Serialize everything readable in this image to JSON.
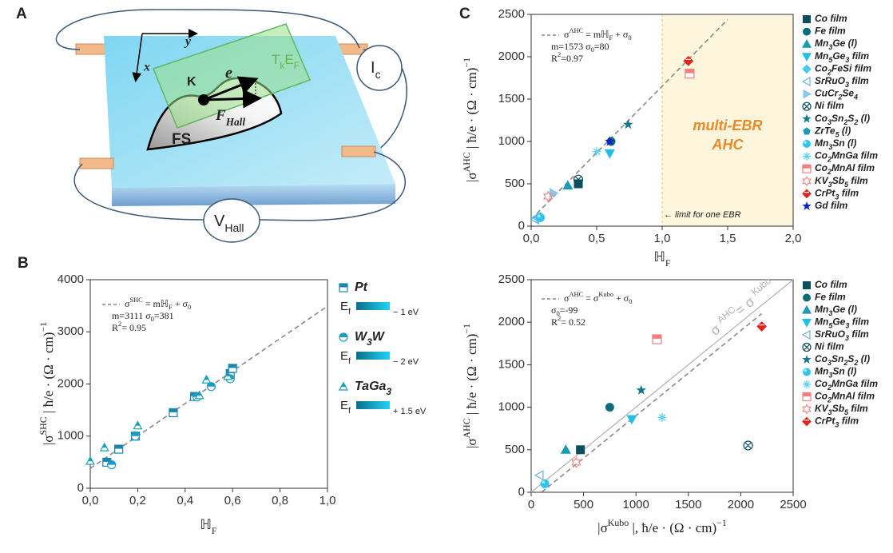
{
  "panel_a": {
    "label": "A",
    "axis_x": "x",
    "axis_y": "y",
    "e": "e",
    "k": "K",
    "tkef": [
      {
        "text": "T"
      },
      {
        "text": "k",
        "shift": "sub"
      },
      {
        "text": "E"
      },
      {
        "text": "F",
        "shift": "sub"
      }
    ],
    "f_hall": [
      {
        "text": "F"
      },
      {
        "text": "Hall",
        "shift": "sub"
      }
    ],
    "fs": "FS",
    "ic": [
      {
        "text": "I"
      },
      {
        "text": "c",
        "shift": "sub"
      }
    ],
    "v_hall": [
      {
        "text": "V"
      },
      {
        "text": "Hall",
        "shift": "sub"
      }
    ]
  },
  "chart_data": [
    {
      "type": "scatter",
      "label": "B",
      "xlabel": [
        {
          "text": "ℍ"
        },
        {
          "text": "F",
          "shift": "sub"
        }
      ],
      "ylabel": [
        {
          "text": "|σ"
        },
        {
          "text": "SHC",
          "shift": "super"
        },
        {
          "text": " | ħ/e · (Ω · cm)"
        },
        {
          "text": "−1",
          "shift": "super"
        }
      ],
      "xlim": [
        0,
        1.0
      ],
      "xticks": [
        {
          "value": 0,
          "label": "0,0"
        },
        {
          "value": 0.2,
          "label": "0,2"
        },
        {
          "value": 0.4,
          "label": "0,4"
        },
        {
          "value": 0.6,
          "label": "0,6"
        },
        {
          "value": 0.8,
          "label": "0,8"
        },
        {
          "value": 1.0,
          "label": "1,0"
        }
      ],
      "ylim": [
        0,
        4000
      ],
      "yticks": [
        0,
        1000,
        2000,
        3000,
        4000
      ],
      "fit": {
        "m": 3111,
        "sigma0": 381,
        "xrange": [
          0,
          1.0
        ],
        "color": "#8a8a8a"
      },
      "annotation": [
        [
          {
            "text": "σ"
          },
          {
            "text": "SHC",
            "shift": "super"
          },
          {
            "text": " = mℍ"
          },
          {
            "text": "F",
            "shift": "sub"
          },
          {
            "text": " + σ"
          },
          {
            "text": "0",
            "shift": "sub"
          }
        ],
        [
          {
            "text": "m=3111 σ"
          },
          {
            "text": "0",
            "shift": "sub"
          },
          {
            "text": "=381"
          }
        ],
        [
          {
            "text": "R"
          },
          {
            "text": "2",
            "shift": "super"
          },
          {
            "text": "= 0.95"
          }
        ]
      ],
      "ef_label": [
        {
          "text": "E"
        },
        {
          "text": "f",
          "shift": "sub"
        }
      ],
      "ef_gradient": [
        "#0a6f8c",
        "#22d2f8"
      ],
      "series": [
        {
          "name": "Pt",
          "marker": "half-square",
          "color": "#1a86b0",
          "ef_range": "− 1 eV",
          "x": [
            0.07,
            0.12,
            0.19,
            0.35,
            0.44,
            0.59,
            0.6
          ],
          "values": [
            500,
            750,
            1000,
            1450,
            1760,
            2200,
            2300
          ]
        },
        {
          "name": "W3W",
          "marker": "half-circle",
          "color": "#1a9cc4",
          "ef_range": "− 2 eV",
          "x": [
            0.09,
            0.19,
            0.45,
            0.51,
            0.59
          ],
          "values": [
            450,
            1000,
            1750,
            1950,
            2100
          ]
        },
        {
          "name": "TaGa3",
          "marker": "half-triangle",
          "color": "#16a0b8",
          "ef_range": "+ 1.5 eV",
          "x": [
            0.0,
            0.06,
            0.2,
            0.46,
            0.49,
            0.58
          ],
          "values": [
            520,
            780,
            1200,
            1780,
            2080,
            2150
          ]
        }
      ]
    },
    {
      "type": "scatter",
      "label": "C",
      "xlabel": [
        {
          "text": "ℍ"
        },
        {
          "text": "F",
          "shift": "sub"
        }
      ],
      "ylabel": [
        {
          "text": "|σ"
        },
        {
          "text": "AHC",
          "shift": "super"
        },
        {
          "text": " | ħ/e · (Ω · cm)"
        },
        {
          "text": "−1",
          "shift": "super"
        }
      ],
      "xlim": [
        0,
        2.0
      ],
      "xticks": [
        {
          "value": 0,
          "label": "0,0"
        },
        {
          "value": 0.5,
          "label": "0,5"
        },
        {
          "value": 1.0,
          "label": "1,0"
        },
        {
          "value": 1.5,
          "label": "1,5"
        },
        {
          "value": 2.0,
          "label": "2,0"
        }
      ],
      "ylim": [
        0,
        2500
      ],
      "yticks": [
        0,
        500,
        1000,
        1500,
        2000,
        2500
      ],
      "fit": {
        "m": 1573,
        "sigma0": 80,
        "xrange": [
          0,
          1.5
        ],
        "color": "#8a8a8a"
      },
      "annotation": [
        [
          {
            "text": "σ"
          },
          {
            "text": "AHC",
            "shift": "super"
          },
          {
            "text": " = mℍ"
          },
          {
            "text": "F",
            "shift": "sub"
          },
          {
            "text": " + σ"
          },
          {
            "text": "0",
            "shift": "sub"
          }
        ],
        [
          {
            "text": "m=1573 σ"
          },
          {
            "text": "0",
            "shift": "sub"
          },
          {
            "text": "=80"
          }
        ],
        [
          {
            "text": "R"
          },
          {
            "text": "2",
            "shift": "super"
          },
          {
            "text": "=0.97"
          }
        ]
      ],
      "region": {
        "xrange": [
          1.0,
          2.0
        ],
        "color": "#fdf5dc",
        "border": "#e8c860",
        "text": [
          "multi-EBR",
          "AHC"
        ],
        "text_color": "#e98b2a",
        "note": "← limit for one EBR"
      },
      "series": [
        {
          "name": "Co film",
          "marker": "square",
          "color": "#0b4f5c",
          "x": [
            0.36
          ],
          "values": [
            500
          ]
        },
        {
          "name": "Fe film",
          "marker": "circle",
          "color": "#0d6b7a",
          "x": [
            0.61
          ],
          "values": [
            1000
          ]
        },
        {
          "name": "Mn3Ge (l)",
          "marker": "triangle",
          "color": "#1a9bb0",
          "x": [
            0.28
          ],
          "values": [
            480
          ]
        },
        {
          "name": "Mn5Ge3 film",
          "marker": "down-triangle",
          "color": "#1ec0e6",
          "x": [
            0.6
          ],
          "values": [
            860
          ]
        },
        {
          "name": "Co2FeSi film",
          "marker": "diamond",
          "color": "#4fc8f0",
          "x": [
            0.05
          ],
          "values": [
            100
          ]
        },
        {
          "name": "SrRuO3 film",
          "marker": "left-triangle",
          "color": "#6ab0e0",
          "x": [
            0.03
          ],
          "values": [
            80
          ]
        },
        {
          "name": "CuCr2Se4",
          "marker": "right-triangle",
          "color": "#8ec8e8",
          "x": [
            0.17
          ],
          "values": [
            390
          ]
        },
        {
          "name": "Ni film",
          "marker": "circle-x",
          "color": "#0b4f5c",
          "x": [
            0.36
          ],
          "values": [
            550
          ]
        },
        {
          "name": "Co3Sn2S2 (l)",
          "marker": "star",
          "color": "#117a8b",
          "x": [
            0.74
          ],
          "values": [
            1200
          ]
        },
        {
          "name": "ZrTe5 (l)",
          "marker": "pentagon",
          "color": "#1a9bb0",
          "x": [
            0.07
          ],
          "values": [
            110
          ]
        },
        {
          "name": "Mn3Sn (l)",
          "marker": "sphere",
          "color": "#2ec4ee",
          "x": [
            0.07
          ],
          "values": [
            100
          ]
        },
        {
          "name": "Co2MnGa film",
          "marker": "asterisk",
          "color": "#59d0f5",
          "x": [
            0.5
          ],
          "values": [
            880
          ]
        },
        {
          "name": "Co2MnAl film",
          "marker": "half-square",
          "color": "#f08080",
          "x": [
            1.21
          ],
          "values": [
            1800
          ]
        },
        {
          "name": "KV3Sb5 film",
          "marker": "hexagram",
          "color": "#f08a8a",
          "x": [
            0.13
          ],
          "values": [
            350
          ]
        },
        {
          "name": "CrPt3 film",
          "marker": "half-diamond",
          "color": "#e8201c",
          "x": [
            1.2
          ],
          "values": [
            1950
          ]
        },
        {
          "name": "Gd film",
          "marker": "star",
          "color": "#1020c8",
          "x": [
            0.6
          ],
          "values": [
            1000
          ]
        }
      ]
    },
    {
      "type": "scatter",
      "xlabel": [
        {
          "text": "|σ"
        },
        {
          "text": "Kubo",
          "shift": "super"
        },
        {
          "text": " |, ħ/e · (Ω · cm)"
        },
        {
          "text": "−1",
          "shift": "super"
        }
      ],
      "ylabel": [
        {
          "text": "|σ"
        },
        {
          "text": "AHC",
          "shift": "super"
        },
        {
          "text": " | ħ/e · (Ω · cm)"
        },
        {
          "text": "−1",
          "shift": "super"
        }
      ],
      "xlim": [
        0,
        2500
      ],
      "xticks": [
        0,
        500,
        1000,
        1500,
        2000,
        2500
      ],
      "ylim": [
        0,
        2500
      ],
      "yticks": [
        0,
        500,
        1000,
        1500,
        2000,
        2500
      ],
      "fit": {
        "m": 1,
        "sigma0": -99,
        "xrange": [
          100,
          2200
        ],
        "color": "#8a8a8a"
      },
      "identity": {
        "color": "#b0b0b0",
        "label": [
          {
            "text": "σ "
          },
          {
            "text": "AHC",
            "shift": "super"
          },
          {
            "text": "= σ "
          },
          {
            "text": "Kubo",
            "shift": "super"
          }
        ]
      },
      "annotation": [
        [
          {
            "text": "σ"
          },
          {
            "text": "AHC",
            "shift": "super"
          },
          {
            "text": " = σ"
          },
          {
            "text": "Kubo",
            "shift": "super"
          },
          {
            "text": " + σ"
          },
          {
            "text": "0",
            "shift": "sub"
          }
        ],
        [
          {
            "text": "σ"
          },
          {
            "text": "0",
            "shift": "sub"
          },
          {
            "text": "=-99"
          }
        ],
        [
          {
            "text": "R"
          },
          {
            "text": "2",
            "shift": "super"
          },
          {
            "text": "= 0.52"
          }
        ]
      ],
      "series": [
        {
          "name": "Co film",
          "marker": "square",
          "color": "#0b4f5c",
          "x": [
            470
          ],
          "values": [
            500
          ]
        },
        {
          "name": "Fe film",
          "marker": "circle",
          "color": "#0d6b7a",
          "x": [
            750
          ],
          "values": [
            1000
          ]
        },
        {
          "name": "Mn3Ge (l)",
          "marker": "triangle",
          "color": "#1a9bb0",
          "x": [
            330
          ],
          "values": [
            500
          ]
        },
        {
          "name": "Mn5Ge3 film",
          "marker": "down-triangle",
          "color": "#1ec0e6",
          "x": [
            960
          ],
          "values": [
            860
          ]
        },
        {
          "name": "SrRuO3 film",
          "marker": "left-triangle",
          "color": "#6ab0e0",
          "x": [
            80
          ],
          "values": [
            200
          ]
        },
        {
          "name": "Ni film",
          "marker": "circle-x",
          "color": "#0b4f5c",
          "x": [
            2070
          ],
          "values": [
            550
          ]
        },
        {
          "name": "Co3Sn2S2 (l)",
          "marker": "star",
          "color": "#117a8b",
          "x": [
            1050
          ],
          "values": [
            1200
          ]
        },
        {
          "name": "Mn3Sn (l)",
          "marker": "sphere",
          "color": "#2ec4ee",
          "x": [
            130
          ],
          "values": [
            100
          ]
        },
        {
          "name": "Co2MnGa film",
          "marker": "asterisk",
          "color": "#59d0f5",
          "x": [
            1250
          ],
          "values": [
            880
          ]
        },
        {
          "name": "Co2MnAl film",
          "marker": "half-square",
          "color": "#f08080",
          "x": [
            1200
          ],
          "values": [
            1800
          ]
        },
        {
          "name": "KV3Sb5 film",
          "marker": "hexagram",
          "color": "#f08a8a",
          "x": [
            430
          ],
          "values": [
            350
          ]
        },
        {
          "name": "CrPt3 film",
          "marker": "half-diamond",
          "color": "#e8201c",
          "x": [
            2200
          ],
          "values": [
            1950
          ]
        }
      ]
    }
  ]
}
